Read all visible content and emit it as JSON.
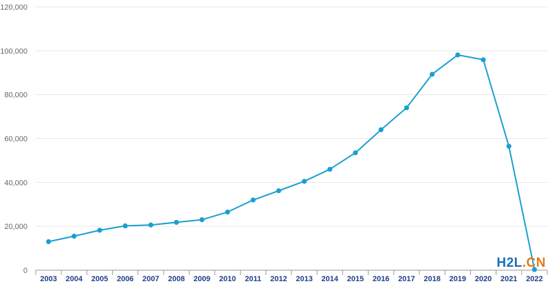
{
  "chart_data": {
    "type": "line",
    "title": "",
    "xlabel": "",
    "ylabel": "",
    "ylim": [
      0,
      120000
    ],
    "yticks": [
      0,
      20000,
      40000,
      60000,
      80000,
      100000,
      120000
    ],
    "ytick_labels": [
      "0",
      "20,000",
      "40,000",
      "60,000",
      "80,000",
      "100,000",
      "120,000"
    ],
    "categories": [
      "2003",
      "2004",
      "2005",
      "2006",
      "2007",
      "2008",
      "2009",
      "2010",
      "2011",
      "2012",
      "2013",
      "2014",
      "2015",
      "2016",
      "2017",
      "2018",
      "2019",
      "2020",
      "2021",
      "2022"
    ],
    "series": [
      {
        "values": [
          13000,
          15500,
          18200,
          20200,
          20600,
          21800,
          23000,
          26500,
          32000,
          36200,
          40500,
          46000,
          53500,
          64000,
          74000,
          89300,
          98100,
          95900,
          56500,
          300
        ]
      }
    ],
    "grid": true,
    "colors": {
      "line": "#1a9fd0",
      "marker": "#1a9fd0",
      "grid": "#e6e6e6",
      "xtick": "#1f3d8a",
      "axis": "#999999"
    }
  },
  "watermark": {
    "part1": "H2L",
    "part2": ".CN"
  }
}
